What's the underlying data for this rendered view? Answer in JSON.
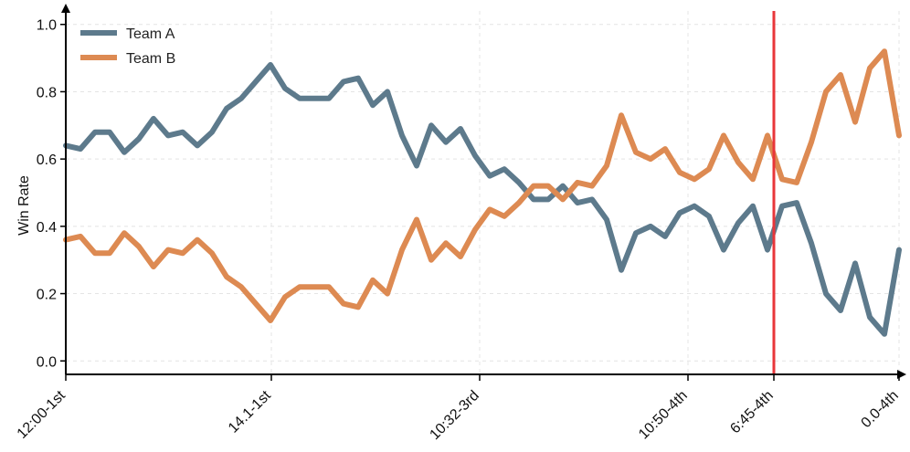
{
  "chart_data": {
    "type": "line",
    "ylabel": "Win Rate",
    "xlabel": "",
    "ylim": [
      -0.04,
      1.04
    ],
    "yticks": [
      "0.0",
      "0.2",
      "0.4",
      "0.6",
      "0.8",
      "1.0"
    ],
    "xticks": [
      "12:00-1st",
      "14.1-1st",
      "10:32-3rd",
      "10:50-4th",
      "6:45-4th",
      "0.0-4th"
    ],
    "grid": true,
    "legend_position": "top-left",
    "marker_label": "6:45-4th",
    "marker_color": "#e8363a",
    "x_count": 58,
    "series": [
      {
        "name": "Team A",
        "color": "#5d7a8c",
        "values": [
          0.64,
          0.63,
          0.68,
          0.68,
          0.62,
          0.66,
          0.72,
          0.67,
          0.68,
          0.64,
          0.68,
          0.75,
          0.78,
          0.83,
          0.88,
          0.81,
          0.78,
          0.78,
          0.78,
          0.83,
          0.84,
          0.76,
          0.8,
          0.67,
          0.58,
          0.7,
          0.65,
          0.69,
          0.61,
          0.55,
          0.57,
          0.53,
          0.48,
          0.48,
          0.52,
          0.47,
          0.48,
          0.42,
          0.27,
          0.38,
          0.4,
          0.37,
          0.44,
          0.46,
          0.43,
          0.33,
          0.41,
          0.46,
          0.33,
          0.46,
          0.47,
          0.35,
          0.2,
          0.15,
          0.29,
          0.13,
          0.08,
          0.33
        ]
      },
      {
        "name": "Team B",
        "color": "#dd8a52",
        "values": [
          0.36,
          0.37,
          0.32,
          0.32,
          0.38,
          0.34,
          0.28,
          0.33,
          0.32,
          0.36,
          0.32,
          0.25,
          0.22,
          0.17,
          0.12,
          0.19,
          0.22,
          0.22,
          0.22,
          0.17,
          0.16,
          0.24,
          0.2,
          0.33,
          0.42,
          0.3,
          0.35,
          0.31,
          0.39,
          0.45,
          0.43,
          0.47,
          0.52,
          0.52,
          0.48,
          0.53,
          0.52,
          0.58,
          0.73,
          0.62,
          0.6,
          0.63,
          0.56,
          0.54,
          0.57,
          0.67,
          0.59,
          0.54,
          0.67,
          0.54,
          0.53,
          0.65,
          0.8,
          0.85,
          0.71,
          0.87,
          0.92,
          0.67
        ]
      }
    ]
  }
}
